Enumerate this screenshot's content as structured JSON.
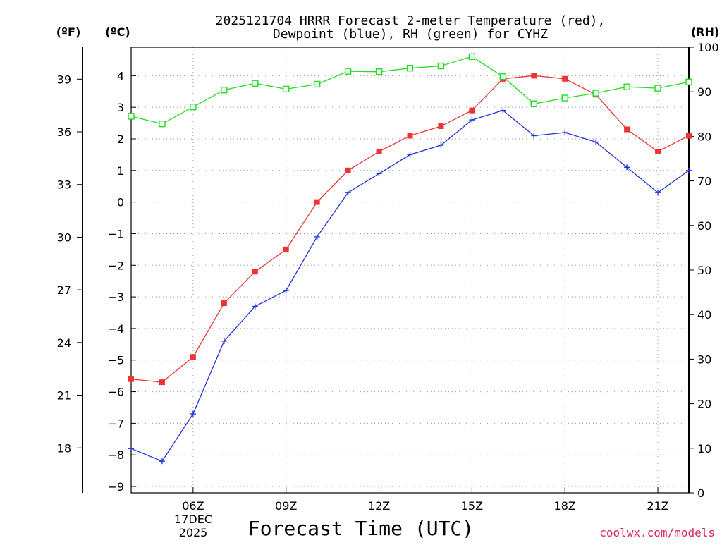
{
  "chart_data": {
    "type": "line",
    "title_line1": "2025121704 HRRR Forecast 2-meter Temperature (red),",
    "title_line2": "Dewpoint (blue), RH (green) for CYHZ",
    "xlabel": "Forecast Time (UTC)",
    "credit": "coolwx.com/models",
    "unit_left_f": "(ºF)",
    "unit_left_c": "(ºC)",
    "unit_right_rh": "(RH)",
    "date_line1": "17DEC",
    "date_line2": "2025",
    "grid": true,
    "x_hours": [
      4,
      5,
      6,
      7,
      8,
      9,
      10,
      11,
      12,
      13,
      14,
      15,
      16,
      17,
      18,
      19,
      20,
      21,
      22
    ],
    "xlim": [
      4,
      22
    ],
    "x_ticks": [
      6,
      9,
      12,
      15,
      18,
      21
    ],
    "x_tick_labels": [
      "06Z",
      "09Z",
      "12Z",
      "15Z",
      "18Z",
      "21Z"
    ],
    "ylim_c": [
      -9.2,
      4.9
    ],
    "y_ticks_c": [
      4,
      3,
      2,
      1,
      0,
      -1,
      -2,
      -3,
      -4,
      -5,
      -6,
      -7,
      -8,
      -9
    ],
    "y_tick_labels_c": [
      "4",
      "3",
      "2",
      "1",
      "0",
      "−1",
      "−2",
      "−3",
      "−4",
      "−5",
      "−6",
      "−7",
      "−8",
      "−9"
    ],
    "y_ticks_f": [
      39,
      36,
      33,
      30,
      27,
      24,
      21,
      18
    ],
    "y_tick_labels_f": [
      "39",
      "36",
      "33",
      "30",
      "27",
      "24",
      "21",
      "18"
    ],
    "ylim_rh": [
      0,
      100
    ],
    "y_ticks_rh": [
      100,
      90,
      80,
      70,
      60,
      50,
      40,
      30,
      20,
      10,
      0
    ],
    "y_tick_labels_rh": [
      "100",
      "90",
      "80",
      "70",
      "60",
      "50",
      "40",
      "30",
      "20",
      "10",
      "0"
    ],
    "series": [
      {
        "name": "Temperature",
        "axis": "c",
        "color": "#ee3333",
        "marker": "square-filled",
        "values": [
          -5.6,
          -5.7,
          -4.9,
          -3.2,
          -2.2,
          -1.5,
          0.0,
          1.0,
          1.6,
          2.1,
          2.4,
          2.9,
          3.9,
          4.0,
          3.9,
          3.4,
          2.3,
          1.6,
          2.1
        ]
      },
      {
        "name": "Dewpoint",
        "axis": "c",
        "color": "#2233dd",
        "marker": "plus",
        "values": [
          -7.8,
          -8.2,
          -6.7,
          -4.4,
          -3.3,
          -2.8,
          -1.1,
          0.3,
          0.9,
          1.5,
          1.8,
          2.6,
          2.9,
          2.1,
          2.2,
          1.9,
          1.1,
          0.3,
          1.0
        ]
      },
      {
        "name": "RH",
        "axis": "rh",
        "color": "#22dd22",
        "marker": "square-open",
        "values": [
          84.5,
          82.8,
          86.6,
          90.4,
          91.9,
          90.6,
          91.7,
          94.6,
          94.5,
          95.3,
          95.8,
          97.9,
          93.4,
          87.3,
          88.6,
          89.7,
          91.1,
          90.8,
          92.2
        ]
      }
    ]
  }
}
